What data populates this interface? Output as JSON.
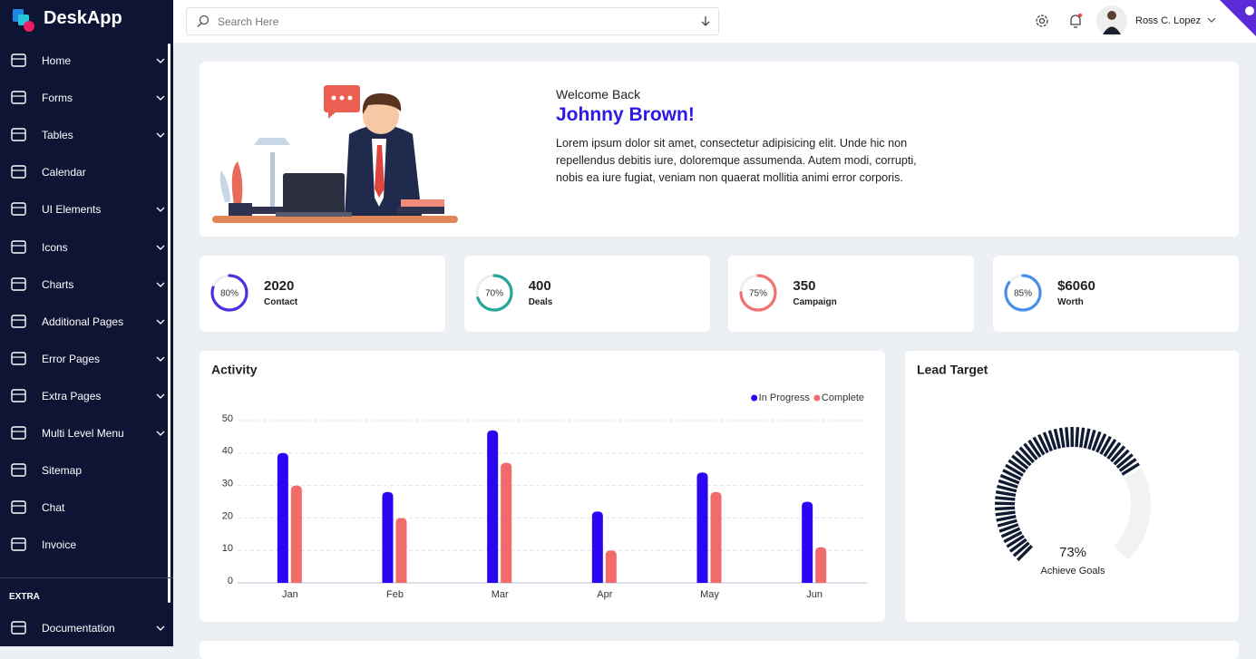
{
  "app": {
    "name": "DeskApp"
  },
  "search": {
    "placeholder": "Search Here"
  },
  "user": {
    "name": "Ross C. Lopez"
  },
  "menu": [
    {
      "label": "Home",
      "submenu": true
    },
    {
      "label": "Forms",
      "submenu": true
    },
    {
      "label": "Tables",
      "submenu": true
    },
    {
      "label": "Calendar",
      "submenu": false
    },
    {
      "label": "UI Elements",
      "submenu": true
    },
    {
      "label": "Icons",
      "submenu": true
    },
    {
      "label": "Charts",
      "submenu": true
    },
    {
      "label": "Additional Pages",
      "submenu": true
    },
    {
      "label": "Error Pages",
      "submenu": true
    },
    {
      "label": "Extra Pages",
      "submenu": true
    },
    {
      "label": "Multi Level Menu",
      "submenu": true
    },
    {
      "label": "Sitemap",
      "submenu": false
    },
    {
      "label": "Chat",
      "submenu": false
    },
    {
      "label": "Invoice",
      "submenu": false
    }
  ],
  "extra": {
    "title": "EXTRA",
    "items": [
      {
        "label": "Documentation",
        "submenu": true
      }
    ]
  },
  "welcome": {
    "greeting": "Welcome Back",
    "name": "Johnny Brown!",
    "text": "Lorem ipsum dolor sit amet, consectetur adipisicing elit. Unde hic non repellendus debitis iure, doloremque assumenda. Autem modi, corrupti, nobis ea iure fugiat, veniam non quaerat mollitia animi error corporis."
  },
  "stats": [
    {
      "percent": 80,
      "percent_label": "80%",
      "value": "2020",
      "label": "Contact",
      "color": "#4f2fe0"
    },
    {
      "percent": 70,
      "percent_label": "70%",
      "value": "400",
      "label": "Deals",
      "color": "#26a69a"
    },
    {
      "percent": 75,
      "percent_label": "75%",
      "value": "350",
      "label": "Campaign",
      "color": "#f07272"
    },
    {
      "percent": 85,
      "percent_label": "85%",
      "value": "$6060",
      "label": "Worth",
      "color": "#4a8fe7"
    }
  ],
  "chart_data": {
    "type": "bar",
    "title": "Activity",
    "categories": [
      "Jan",
      "Feb",
      "Mar",
      "Apr",
      "May",
      "Jun"
    ],
    "series": [
      {
        "name": "In Progress",
        "color": "#2a06f2",
        "values": [
          40,
          28,
          47,
          22,
          34,
          25
        ]
      },
      {
        "name": "Complete",
        "color": "#f26b6b",
        "values": [
          30,
          20,
          37,
          10,
          28,
          11
        ]
      }
    ],
    "ylim": [
      0,
      50
    ],
    "yticks": [
      0,
      10,
      20,
      30,
      40,
      50
    ],
    "grid": true,
    "legend": "top-right"
  },
  "lead_target": {
    "title": "Lead Target",
    "value": 73,
    "value_label": "73%",
    "label": "Achieve Goals",
    "color": "#111a33"
  }
}
